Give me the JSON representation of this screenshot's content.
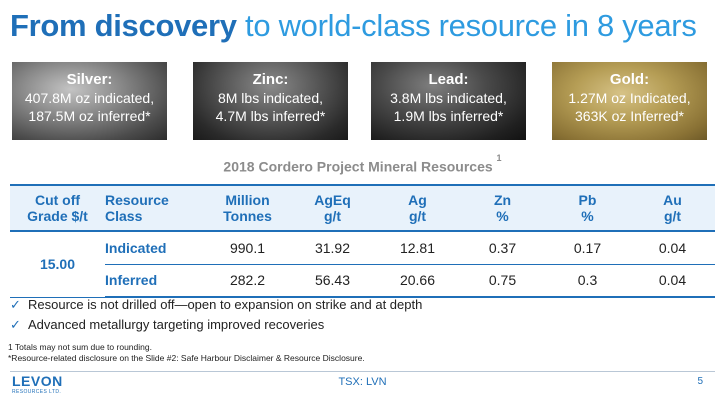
{
  "slide": {
    "title_bold": "From discovery",
    "title_rest": "to world-class resource in 8 years"
  },
  "metals": [
    {
      "name": "Silver:",
      "line1": "407.8M oz indicated,",
      "line2": "187.5M oz inferred*"
    },
    {
      "name": "Zinc:",
      "line1": "8M lbs indicated,",
      "line2": "4.7M lbs inferred*"
    },
    {
      "name": "Lead:",
      "line1": "3.8M lbs indicated,",
      "line2": "1.9M lbs inferred*"
    },
    {
      "name": "Gold:",
      "line1": "1.27M oz Indicated,",
      "line2": "363K oz Inferred*"
    }
  ],
  "table": {
    "caption": "2018 Cordero Project Mineral Resources",
    "caption_sup": "1",
    "headers": [
      {
        "l1": "Cut off",
        "l2": "Grade $/t"
      },
      {
        "l1": "Resource",
        "l2": "Class"
      },
      {
        "l1": "Million",
        "l2": "Tonnes"
      },
      {
        "l1": "AgEq",
        "l2": "g/t"
      },
      {
        "l1": "Ag",
        "l2": "g/t"
      },
      {
        "l1": "Zn",
        "l2": "%"
      },
      {
        "l1": "Pb",
        "l2": "%"
      },
      {
        "l1": "Au",
        "l2": "g/t"
      }
    ],
    "cutoff": "15.00",
    "rows": [
      {
        "class": "Indicated",
        "tonnes": "990.1",
        "ageq": "31.92",
        "ag": "12.81",
        "zn": "0.37",
        "pb": "0.17",
        "au": "0.04"
      },
      {
        "class": "Inferred",
        "tonnes": "282.2",
        "ageq": "56.43",
        "ag": "20.66",
        "zn": "0.75",
        "pb": "0.3",
        "au": "0.04"
      }
    ]
  },
  "bullets": [
    "Resource is not drilled off—open to expansion on strike and at depth",
    "Advanced metallurgy targeting improved recoveries"
  ],
  "footnotes": [
    "1 Totals may not sum due to rounding.",
    "*Resource-related disclosure on the Slide #2: Safe Harbour Disclaimer & Resource Disclosure."
  ],
  "footer": {
    "logo_word": "LEVON",
    "logo_sub": "RESOURCES LTD.",
    "ticker": "TSX: LVN",
    "page": "5"
  }
}
